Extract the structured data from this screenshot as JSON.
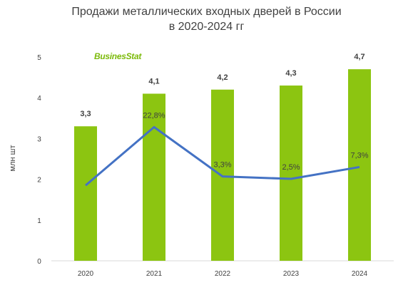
{
  "chart_data": {
    "type": "bar",
    "title_lines": [
      "Продажи металлических входных дверей в России",
      "в 2020-2024 гг"
    ],
    "ylabel": "млн шт",
    "ylim": [
      0,
      5
    ],
    "yticks": [
      "0",
      "1",
      "2",
      "3",
      "4",
      "5"
    ],
    "categories": [
      "2020",
      "2021",
      "2022",
      "2023",
      "2024"
    ],
    "series": [
      {
        "values": [
          3.3,
          4.1,
          4.2,
          4.3,
          4.7
        ],
        "labels": [
          "3,3",
          "4,1",
          "4,2",
          "4,3",
          "4,7"
        ],
        "color": "#8cc511"
      },
      {
        "type": "line",
        "values": [
          1.85,
          3.28,
          2.07,
          2.01,
          2.3
        ],
        "labels": [
          "",
          "22,8%",
          "3,3%",
          "2,5%",
          "7,3%"
        ],
        "color": "#4472c4"
      }
    ],
    "grid": false,
    "legend": "none"
  },
  "logo": {
    "text": "BusinesStat",
    "color": "#7cba0a"
  }
}
